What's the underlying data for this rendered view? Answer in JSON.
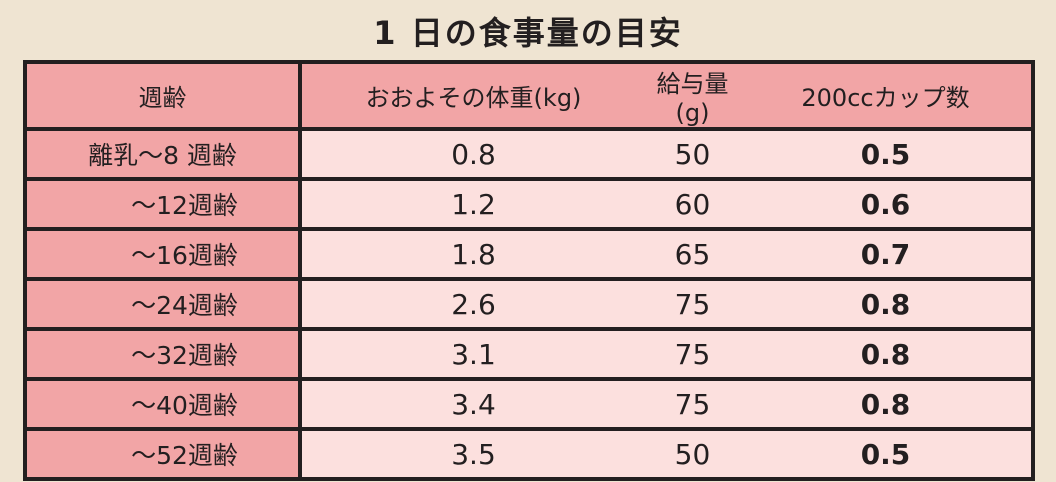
{
  "title": "1 日の食事量の目安",
  "table": {
    "headers": [
      "週齢",
      "おおよその体重(kg)",
      "給与量(g)",
      "200ccカップ数"
    ],
    "rows": [
      [
        "離乳～8 週齢",
        "0.8",
        "50",
        "0.5"
      ],
      [
        "～12週齢",
        "1.2",
        "60",
        "0.6"
      ],
      [
        "～16週齢",
        "1.8",
        "65",
        "0.7"
      ],
      [
        "～24週齢",
        "2.6",
        "75",
        "0.8"
      ],
      [
        "～32週齢",
        "3.1",
        "75",
        "0.8"
      ],
      [
        "～40週齢",
        "3.4",
        "75",
        "0.8"
      ],
      [
        "～52週齢",
        "3.5",
        "50",
        "0.5"
      ]
    ]
  },
  "colors": {
    "background": "#efe4d2",
    "header": "#f2a5a6",
    "cell": "#fce0de",
    "border": "#231f20"
  }
}
